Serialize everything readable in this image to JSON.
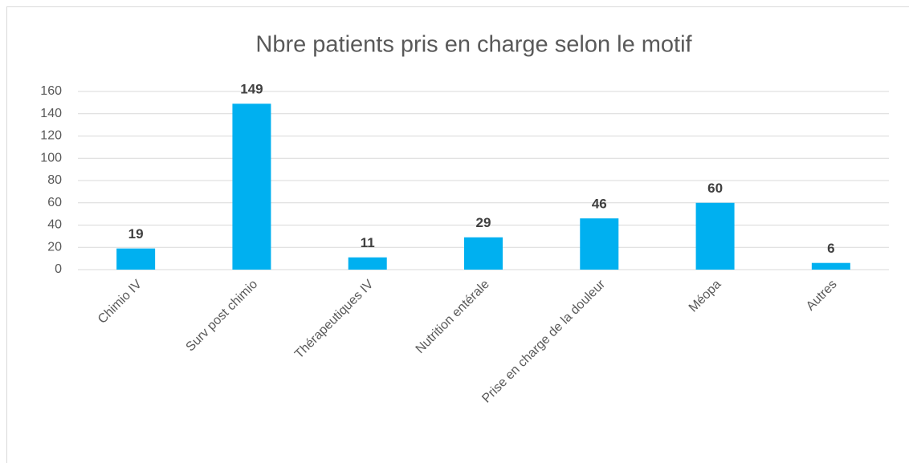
{
  "chart_data": {
    "type": "bar",
    "title": "Nbre patients pris en charge selon le motif",
    "categories": [
      "Chimio IV",
      "Surv post chimio",
      "Thérapeutiques IV",
      "Nutrition entérale",
      "Prise en charge de la douleur",
      "Méopa",
      "Autres"
    ],
    "values": [
      19,
      149,
      11,
      29,
      46,
      60,
      6
    ],
    "color": "#00b0f0",
    "ylim": [
      0,
      160
    ],
    "yticks": [
      0,
      20,
      40,
      60,
      80,
      100,
      120,
      140,
      160
    ],
    "grid": true
  }
}
